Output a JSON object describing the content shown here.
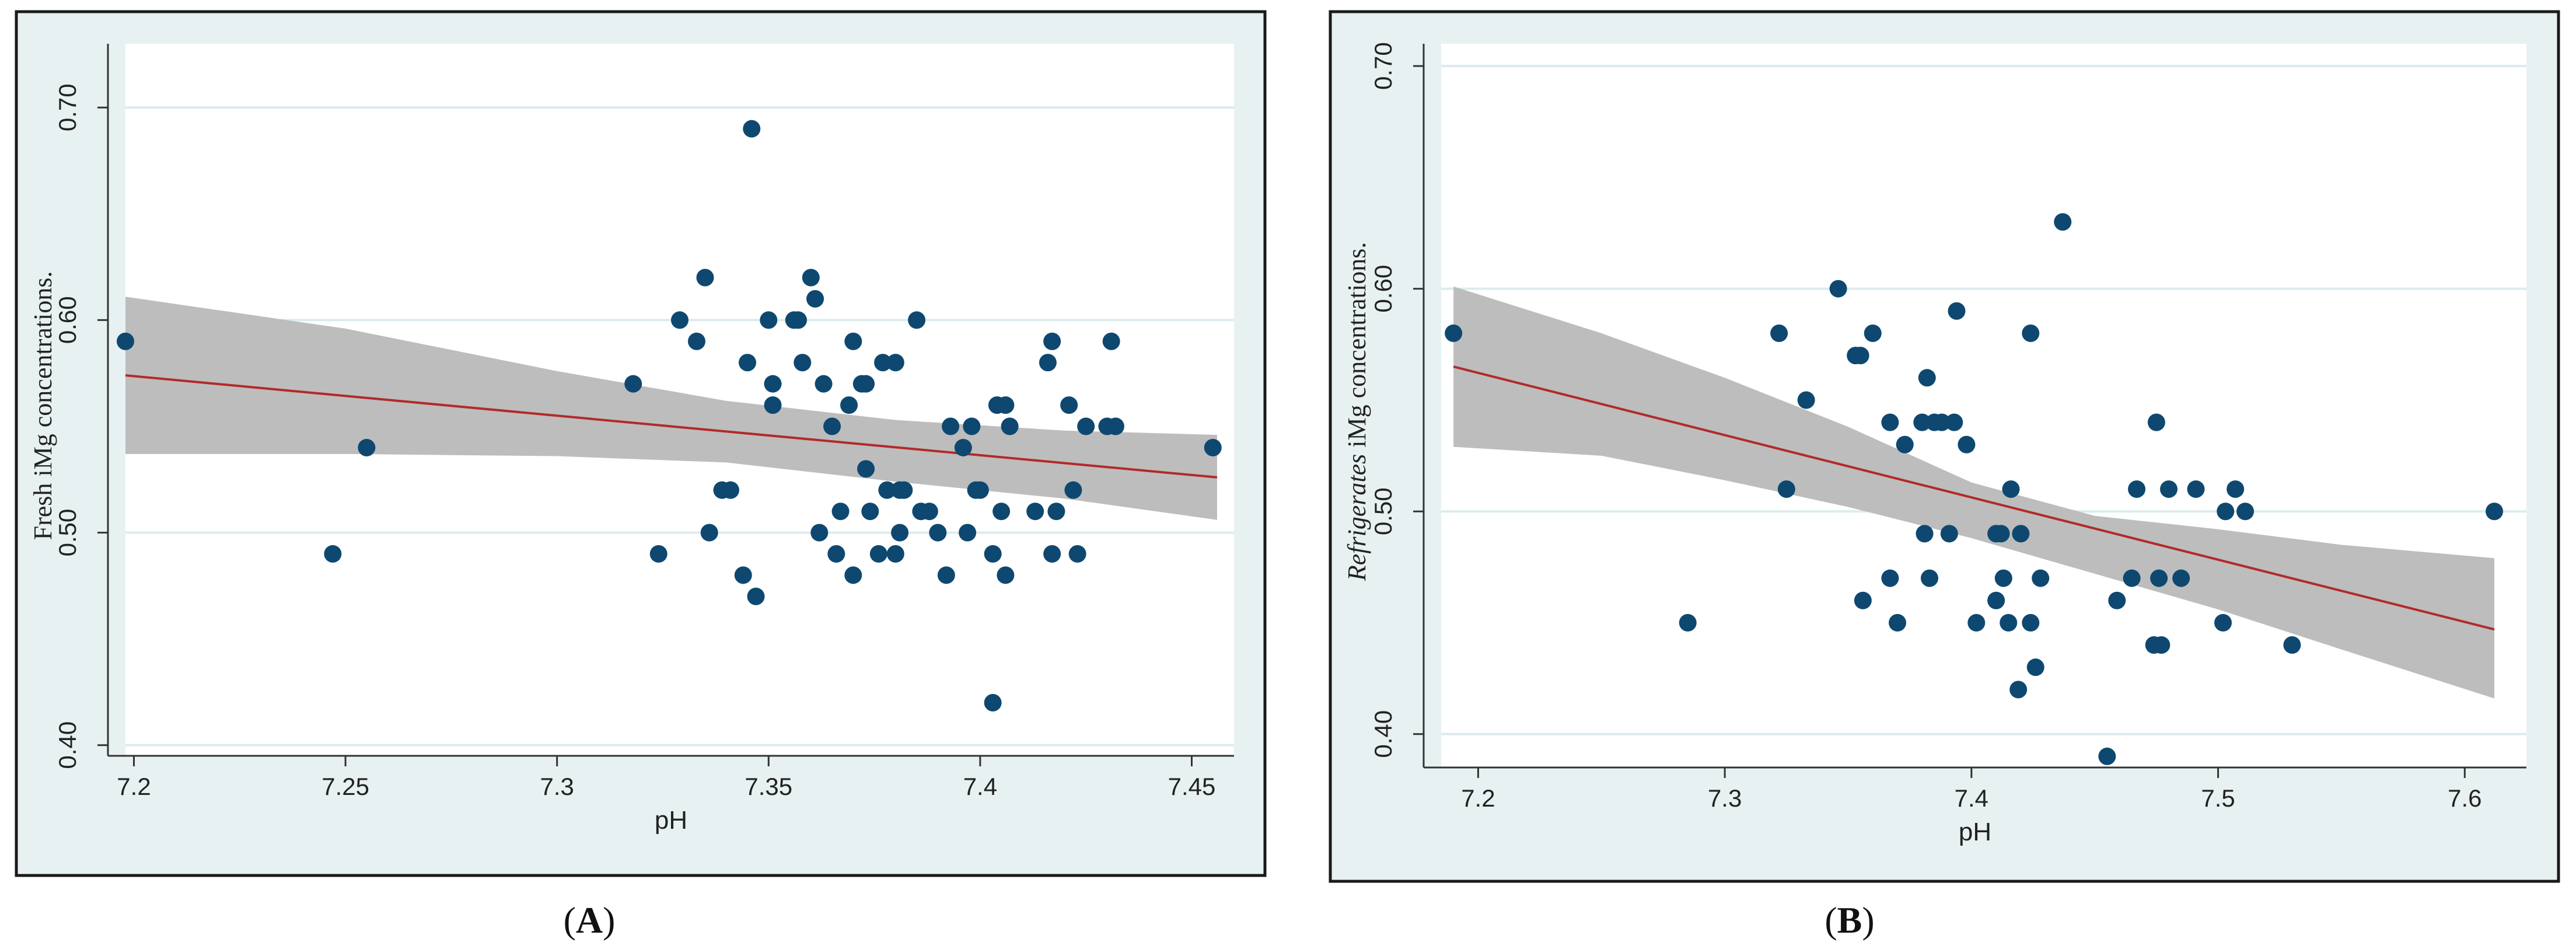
{
  "colors": {
    "frame_bg": "#e8f1f2",
    "plot_bg": "#ffffff",
    "gridline": "#dcebee",
    "frame_border": "#1a1a1a",
    "point": "#0e4870",
    "fit_line": "#b22a2a",
    "ci_band": "#bdbdbd",
    "text": "#222222"
  },
  "panels": [
    {
      "caption": "A",
      "chart_data": {
        "type": "scatter",
        "title": "",
        "xlabel": "pH",
        "ylabel": "Fresh iMg concentrations.",
        "xlim": [
          7.198,
          7.46
        ],
        "ylim": [
          0.395,
          0.73
        ],
        "xticks": [
          7.2,
          7.25,
          7.3,
          7.35,
          7.4,
          7.45
        ],
        "xtick_labels": [
          "7.2",
          "7.25",
          "7.3",
          "7.35",
          "7.4",
          "7.45"
        ],
        "yticks": [
          0.4,
          0.5,
          0.6,
          0.7
        ],
        "ytick_labels": [
          "0.40",
          "0.50",
          "0.60",
          "0.70"
        ],
        "points": [
          [
            7.198,
            0.59
          ],
          [
            7.247,
            0.49
          ],
          [
            7.255,
            0.54
          ],
          [
            7.318,
            0.57
          ],
          [
            7.324,
            0.49
          ],
          [
            7.329,
            0.6
          ],
          [
            7.333,
            0.59
          ],
          [
            7.335,
            0.62
          ],
          [
            7.336,
            0.5
          ],
          [
            7.339,
            0.52
          ],
          [
            7.341,
            0.52
          ],
          [
            7.344,
            0.48
          ],
          [
            7.345,
            0.58
          ],
          [
            7.346,
            0.69
          ],
          [
            7.347,
            0.47
          ],
          [
            7.35,
            0.6
          ],
          [
            7.351,
            0.56
          ],
          [
            7.351,
            0.57
          ],
          [
            7.356,
            0.6
          ],
          [
            7.357,
            0.6
          ],
          [
            7.358,
            0.58
          ],
          [
            7.36,
            0.62
          ],
          [
            7.361,
            0.61
          ],
          [
            7.362,
            0.5
          ],
          [
            7.363,
            0.57
          ],
          [
            7.365,
            0.55
          ],
          [
            7.366,
            0.49
          ],
          [
            7.367,
            0.51
          ],
          [
            7.369,
            0.56
          ],
          [
            7.37,
            0.59
          ],
          [
            7.37,
            0.48
          ],
          [
            7.372,
            0.57
          ],
          [
            7.373,
            0.57
          ],
          [
            7.373,
            0.53
          ],
          [
            7.374,
            0.51
          ],
          [
            7.376,
            0.49
          ],
          [
            7.377,
            0.58
          ],
          [
            7.378,
            0.52
          ],
          [
            7.38,
            0.58
          ],
          [
            7.38,
            0.49
          ],
          [
            7.381,
            0.52
          ],
          [
            7.381,
            0.5
          ],
          [
            7.382,
            0.52
          ],
          [
            7.385,
            0.6
          ],
          [
            7.386,
            0.51
          ],
          [
            7.388,
            0.51
          ],
          [
            7.39,
            0.5
          ],
          [
            7.392,
            0.48
          ],
          [
            7.393,
            0.55
          ],
          [
            7.396,
            0.54
          ],
          [
            7.397,
            0.5
          ],
          [
            7.398,
            0.55
          ],
          [
            7.399,
            0.52
          ],
          [
            7.4,
            0.52
          ],
          [
            7.403,
            0.49
          ],
          [
            7.403,
            0.42
          ],
          [
            7.404,
            0.56
          ],
          [
            7.405,
            0.51
          ],
          [
            7.406,
            0.48
          ],
          [
            7.406,
            0.56
          ],
          [
            7.407,
            0.55
          ],
          [
            7.413,
            0.51
          ],
          [
            7.416,
            0.58
          ],
          [
            7.417,
            0.59
          ],
          [
            7.417,
            0.49
          ],
          [
            7.418,
            0.51
          ],
          [
            7.421,
            0.56
          ],
          [
            7.422,
            0.52
          ],
          [
            7.423,
            0.49
          ],
          [
            7.425,
            0.55
          ],
          [
            7.43,
            0.55
          ],
          [
            7.431,
            0.59
          ],
          [
            7.432,
            0.55
          ],
          [
            7.455,
            0.54
          ]
        ],
        "fit_line": {
          "x": [
            7.198,
            7.456
          ],
          "y": [
            0.574,
            0.526
          ]
        },
        "ci_band": {
          "x": [
            7.198,
            7.25,
            7.3,
            7.34,
            7.38,
            7.42,
            7.456
          ],
          "lower": [
            0.537,
            0.537,
            0.536,
            0.533,
            0.524,
            0.516,
            0.506
          ],
          "upper": [
            0.611,
            0.596,
            0.576,
            0.562,
            0.553,
            0.548,
            0.546
          ]
        }
      }
    },
    {
      "caption": "B",
      "chart_data": {
        "type": "scatter",
        "title": "",
        "xlabel": "pH",
        "ylabel": "Refrigerates iMg concentrations.",
        "ylabel_italic_word": "Refrigerates",
        "ylabel_rest": " iMg concentrations.",
        "xlim": [
          7.185,
          7.625
        ],
        "ylim": [
          0.385,
          0.71
        ],
        "xticks": [
          7.2,
          7.3,
          7.4,
          7.5,
          7.6
        ],
        "xtick_labels": [
          "7.2",
          "7.3",
          "7.4",
          "7.5",
          "7.6"
        ],
        "yticks": [
          0.4,
          0.5,
          0.6,
          0.7
        ],
        "ytick_labels": [
          "0.40",
          "0.50",
          "0.60",
          "0.70"
        ],
        "points": [
          [
            7.19,
            0.58
          ],
          [
            7.285,
            0.45
          ],
          [
            7.322,
            0.58
          ],
          [
            7.325,
            0.51
          ],
          [
            7.333,
            0.55
          ],
          [
            7.346,
            0.6
          ],
          [
            7.353,
            0.57
          ],
          [
            7.355,
            0.57
          ],
          [
            7.356,
            0.46
          ],
          [
            7.36,
            0.58
          ],
          [
            7.367,
            0.54
          ],
          [
            7.367,
            0.47
          ],
          [
            7.37,
            0.45
          ],
          [
            7.373,
            0.53
          ],
          [
            7.38,
            0.54
          ],
          [
            7.381,
            0.49
          ],
          [
            7.382,
            0.56
          ],
          [
            7.383,
            0.47
          ],
          [
            7.385,
            0.54
          ],
          [
            7.388,
            0.54
          ],
          [
            7.391,
            0.49
          ],
          [
            7.393,
            0.54
          ],
          [
            7.394,
            0.59
          ],
          [
            7.398,
            0.53
          ],
          [
            7.402,
            0.45
          ],
          [
            7.41,
            0.46
          ],
          [
            7.41,
            0.49
          ],
          [
            7.412,
            0.49
          ],
          [
            7.413,
            0.47
          ],
          [
            7.415,
            0.45
          ],
          [
            7.416,
            0.51
          ],
          [
            7.419,
            0.42
          ],
          [
            7.42,
            0.49
          ],
          [
            7.424,
            0.58
          ],
          [
            7.424,
            0.45
          ],
          [
            7.426,
            0.43
          ],
          [
            7.428,
            0.47
          ],
          [
            7.437,
            0.63
          ],
          [
            7.455,
            0.39
          ],
          [
            7.459,
            0.46
          ],
          [
            7.465,
            0.47
          ],
          [
            7.467,
            0.51
          ],
          [
            7.474,
            0.44
          ],
          [
            7.475,
            0.54
          ],
          [
            7.476,
            0.47
          ],
          [
            7.477,
            0.44
          ],
          [
            7.48,
            0.51
          ],
          [
            7.485,
            0.47
          ],
          [
            7.491,
            0.51
          ],
          [
            7.502,
            0.45
          ],
          [
            7.503,
            0.5
          ],
          [
            7.507,
            0.51
          ],
          [
            7.511,
            0.5
          ],
          [
            7.53,
            0.44
          ],
          [
            7.612,
            0.5
          ]
        ],
        "fit_line": {
          "x": [
            7.19,
            7.612
          ],
          "y": [
            0.565,
            0.447
          ]
        },
        "ci_band": {
          "x": [
            7.19,
            7.25,
            7.3,
            7.35,
            7.4,
            7.45,
            7.5,
            7.55,
            7.612
          ],
          "lower": [
            0.529,
            0.525,
            0.514,
            0.502,
            0.488,
            0.472,
            0.456,
            0.438,
            0.416
          ],
          "upper": [
            0.601,
            0.58,
            0.56,
            0.538,
            0.513,
            0.498,
            0.492,
            0.485,
            0.479
          ]
        }
      }
    }
  ]
}
